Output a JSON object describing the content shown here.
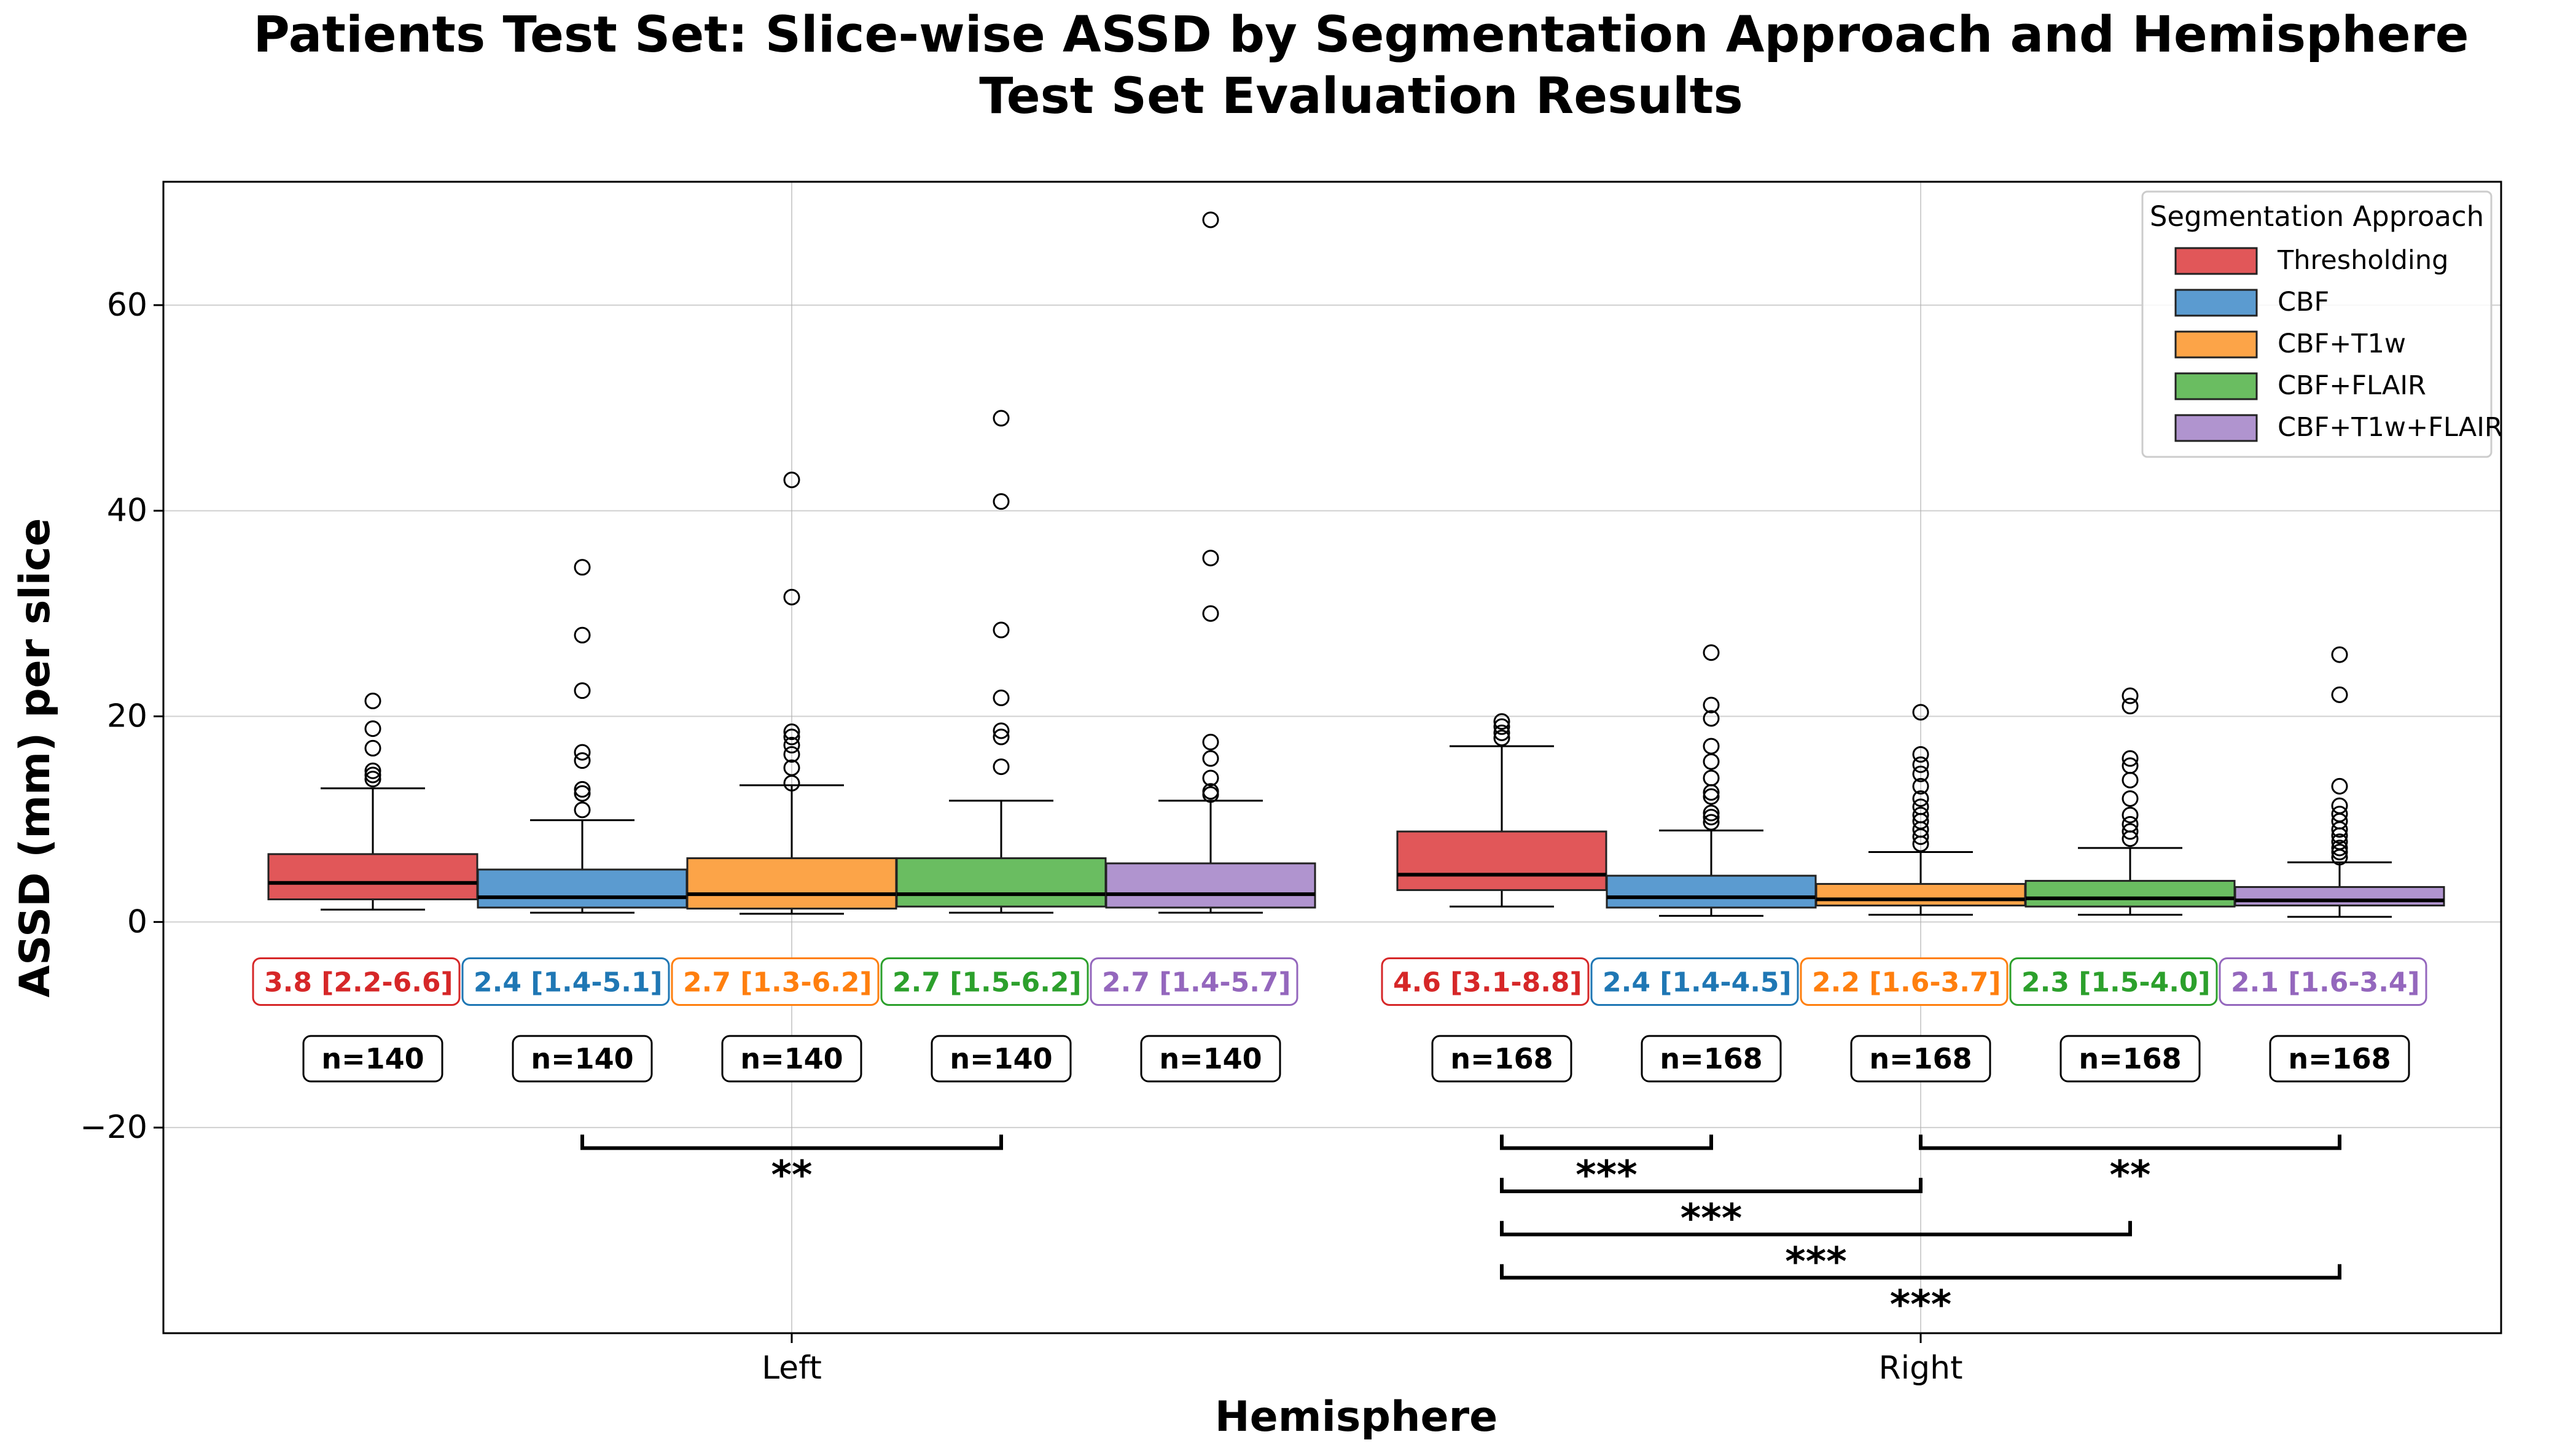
{
  "chart_data": {
    "type": "box",
    "title": "Patients Test Set: Slice-wise ASSD by Segmentation Approach and Hemisphere",
    "subtitle": "Test Set Evaluation Results",
    "xlabel": "Hemisphere",
    "ylabel": "ASSD (mm) per slice",
    "ylim": [
      -40,
      72
    ],
    "yticks": [
      -20,
      0,
      20,
      40,
      60
    ],
    "ytick_labels": [
      "−20",
      "0",
      "20",
      "40",
      "60"
    ],
    "grid": true,
    "legend": {
      "title": "Segmentation Approach",
      "placement": "top-right",
      "entries": [
        "Thresholding",
        "CBF",
        "CBF+T1w",
        "CBF+FLAIR",
        "CBF+T1w+FLAIR"
      ]
    },
    "colors": [
      "#e15759",
      "#5b9bd0",
      "#fca448",
      "#6abd61",
      "#b094cf"
    ],
    "text_colors": [
      "#d62728",
      "#1f77b4",
      "#ff7f0e",
      "#2ca02c",
      "#9467bd"
    ],
    "categories": [
      "Left",
      "Right"
    ],
    "groups": [
      {
        "name": "Left",
        "boxes": [
          {
            "approach": "Thresholding",
            "q1": 2.2,
            "median": 3.8,
            "q3": 6.6,
            "whisker_low": 1.2,
            "whisker_high": 13.0,
            "outliers": [
              13.9,
              14.3,
              14.7,
              16.9,
              18.8,
              21.5
            ],
            "stat_label": "3.8 [2.2-6.6]",
            "n_label": "n=140"
          },
          {
            "approach": "CBF",
            "q1": 1.4,
            "median": 2.4,
            "q3": 5.1,
            "whisker_low": 0.9,
            "whisker_high": 9.9,
            "outliers": [
              10.9,
              12.5,
              12.9,
              15.7,
              16.5,
              22.5,
              27.9,
              34.5
            ],
            "stat_label": "2.4 [1.4-5.1]",
            "n_label": "n=140"
          },
          {
            "approach": "CBF+T1w",
            "q1": 1.3,
            "median": 2.7,
            "q3": 6.2,
            "whisker_low": 0.8,
            "whisker_high": 13.3,
            "outliers": [
              13.5,
              15.0,
              16.3,
              17.2,
              18.0,
              18.5,
              31.6,
              43.0
            ],
            "stat_label": "2.7 [1.3-6.2]",
            "n_label": "n=140"
          },
          {
            "approach": "CBF+FLAIR",
            "q1": 1.5,
            "median": 2.7,
            "q3": 6.2,
            "whisker_low": 0.9,
            "whisker_high": 11.8,
            "outliers": [
              15.1,
              18.0,
              18.6,
              21.8,
              28.4,
              40.9,
              49.0
            ],
            "stat_label": "2.7 [1.5-6.2]",
            "n_label": "n=140"
          },
          {
            "approach": "CBF+T1w+FLAIR",
            "q1": 1.4,
            "median": 2.7,
            "q3": 5.7,
            "whisker_low": 0.9,
            "whisker_high": 11.8,
            "outliers": [
              12.4,
              12.7,
              14.0,
              15.9,
              17.5,
              30.0,
              35.4,
              68.3
            ],
            "stat_label": "2.7 [1.4-5.7]",
            "n_label": "n=140"
          }
        ]
      },
      {
        "name": "Right",
        "boxes": [
          {
            "approach": "Thresholding",
            "q1": 3.1,
            "median": 4.6,
            "q3": 8.8,
            "whisker_low": 1.5,
            "whisker_high": 17.1,
            "outliers": [
              17.9,
              18.4,
              19.0,
              19.5
            ],
            "stat_label": "4.6 [3.1-8.8]",
            "n_label": "n=168"
          },
          {
            "approach": "CBF",
            "q1": 1.4,
            "median": 2.4,
            "q3": 4.5,
            "whisker_low": 0.6,
            "whisker_high": 8.9,
            "outliers": [
              9.7,
              10.2,
              10.6,
              12.2,
              12.6,
              14.0,
              15.6,
              17.1,
              19.8,
              21.1,
              26.2
            ],
            "stat_label": "2.4 [1.4-4.5]",
            "n_label": "n=168"
          },
          {
            "approach": "CBF+T1w",
            "q1": 1.6,
            "median": 2.2,
            "q3": 3.7,
            "whisker_low": 0.7,
            "whisker_high": 6.8,
            "outliers": [
              7.6,
              8.3,
              9.0,
              9.8,
              10.4,
              11.2,
              12.0,
              13.2,
              14.4,
              15.3,
              16.3,
              20.4
            ],
            "stat_label": "2.2 [1.6-3.7]",
            "n_label": "n=168"
          },
          {
            "approach": "CBF+FLAIR",
            "q1": 1.5,
            "median": 2.3,
            "q3": 4.0,
            "whisker_low": 0.7,
            "whisker_high": 7.2,
            "outliers": [
              8.1,
              8.8,
              9.5,
              10.4,
              12.0,
              13.8,
              15.2,
              15.9,
              21.0,
              22.0
            ],
            "stat_label": "2.3 [1.5-4.0]",
            "n_label": "n=168"
          },
          {
            "approach": "CBF+T1w+FLAIR",
            "q1": 1.6,
            "median": 2.1,
            "q3": 3.4,
            "whisker_low": 0.5,
            "whisker_high": 5.8,
            "outliers": [
              6.3,
              6.8,
              7.2,
              7.8,
              8.4,
              9.0,
              9.8,
              10.5,
              11.3,
              13.2,
              22.1,
              26.0
            ],
            "stat_label": "2.1 [1.6-3.4]",
            "n_label": "n=168"
          }
        ]
      }
    ],
    "stat_label_y": -5.8,
    "n_label_y": -13.3,
    "significance": [
      {
        "group": "Left",
        "from": 1,
        "to": 3,
        "y": -22.0,
        "label": "**"
      },
      {
        "group": "Right",
        "from": 0,
        "to": 1,
        "y": -22.0,
        "label": "***"
      },
      {
        "group": "Right",
        "from": 2,
        "to": 4,
        "y": -22.0,
        "label": "**"
      },
      {
        "group": "Right",
        "from": 0,
        "to": 2,
        "y": -26.2,
        "label": "***"
      },
      {
        "group": "Right",
        "from": 0,
        "to": 3,
        "y": -30.4,
        "label": "***"
      },
      {
        "group": "Right",
        "from": 0,
        "to": 4,
        "y": -34.6,
        "label": "***"
      }
    ]
  }
}
